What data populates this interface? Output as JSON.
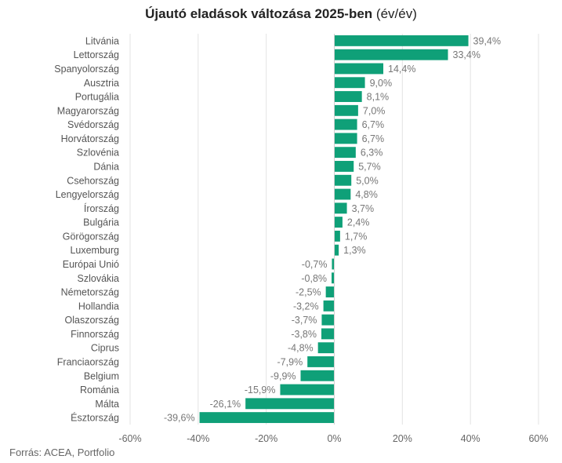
{
  "title_main": "Újautó eladások változása 2025-ben",
  "title_unit": "(év/év)",
  "source": "Forrás: ACEA, Portfolio",
  "colors": {
    "bar": "#0fa078",
    "grid": "#e3e3e3",
    "zero_line": "#cfcfcf"
  },
  "chart_data": {
    "type": "bar",
    "orientation": "horizontal",
    "title": "Újautó eladások változása 2025-ben (év/év)",
    "xlabel": "",
    "ylabel": "",
    "xlim": [
      -60,
      60
    ],
    "grid": true,
    "x_ticks": [
      -60,
      -40,
      -20,
      0,
      20,
      40,
      60
    ],
    "x_tick_labels": [
      "-60%",
      "-40%",
      "-20%",
      "0%",
      "20%",
      "40%",
      "60%"
    ],
    "categories": [
      "Litvánia",
      "Lettország",
      "Spanyolország",
      "Ausztria",
      "Portugália",
      "Magyarország",
      "Svédország",
      "Horvátország",
      "Szlovénia",
      "Dánia",
      "Csehország",
      "Lengyelország",
      "Írország",
      "Bulgária",
      "Görögország",
      "Luxemburg",
      "Európai Unió",
      "Szlovákia",
      "Németország",
      "Hollandia",
      "Olaszország",
      "Finnország",
      "Ciprus",
      "Franciaország",
      "Belgium",
      "Románia",
      "Málta",
      "Észtország"
    ],
    "values": [
      39.4,
      33.4,
      14.4,
      9.0,
      8.1,
      7.0,
      6.7,
      6.7,
      6.3,
      5.7,
      5.0,
      4.8,
      3.7,
      2.4,
      1.7,
      1.3,
      -0.7,
      -0.8,
      -2.5,
      -3.2,
      -3.7,
      -3.8,
      -4.8,
      -7.9,
      -9.9,
      -15.9,
      -26.1,
      -39.6
    ],
    "value_labels": [
      "39,4%",
      "33,4%",
      "14,4%",
      "9,0%",
      "8,1%",
      "7,0%",
      "6,7%",
      "6,7%",
      "6,3%",
      "5,7%",
      "5,0%",
      "4,8%",
      "3,7%",
      "2,4%",
      "1,7%",
      "1,3%",
      "-0,7%",
      "-0,8%",
      "-2,5%",
      "-3,2%",
      "-3,7%",
      "-3,8%",
      "-4,8%",
      "-7,9%",
      "-9,9%",
      "-15,9%",
      "-26,1%",
      "-39,6%"
    ]
  }
}
